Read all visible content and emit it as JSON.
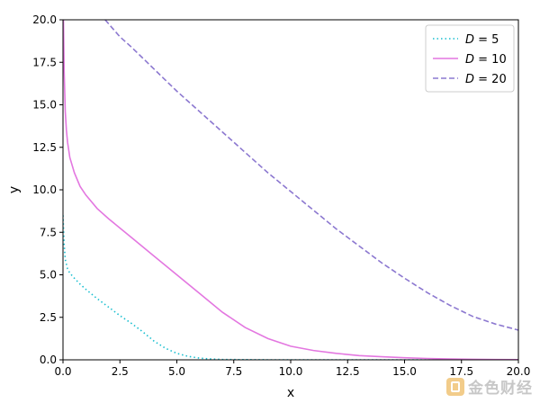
{
  "chart_data": {
    "type": "line",
    "title": "",
    "xlabel": "x",
    "ylabel": "y",
    "xlim": [
      0,
      20
    ],
    "ylim": [
      0,
      20
    ],
    "xticks": [
      "0.0",
      "2.5",
      "5.0",
      "7.5",
      "10.0",
      "12.5",
      "15.0",
      "17.5",
      "20.0"
    ],
    "yticks": [
      "0.0",
      "2.5",
      "5.0",
      "7.5",
      "10.0",
      "12.5",
      "15.0",
      "17.5",
      "20.0"
    ],
    "grid": false,
    "legend_position": "top-right",
    "series": [
      {
        "name": "D = 5",
        "legend_var": "D",
        "legend_value": "5",
        "color": "#17becf",
        "style": "dotted",
        "x": [
          0.0,
          0.05,
          0.1,
          0.2,
          0.3,
          0.5,
          0.75,
          1.0,
          1.5,
          2.0,
          2.5,
          3.0,
          3.5,
          4.0,
          4.5,
          5.0,
          5.5,
          6.0,
          6.5,
          7.0,
          8.0,
          9.0,
          10.0,
          12.0,
          15.0,
          20.0
        ],
        "y": [
          8.5,
          6.8,
          5.9,
          5.35,
          5.1,
          4.8,
          4.45,
          4.15,
          3.6,
          3.1,
          2.6,
          2.15,
          1.65,
          1.1,
          0.68,
          0.38,
          0.2,
          0.1,
          0.05,
          0.02,
          0.01,
          0.0,
          0.0,
          0.0,
          0.0,
          0.0
        ]
      },
      {
        "name": "D = 10",
        "legend_var": "D",
        "legend_value": "10",
        "color": "#e377e0",
        "style": "solid",
        "x": [
          0.02,
          0.05,
          0.1,
          0.15,
          0.2,
          0.3,
          0.5,
          0.75,
          1.0,
          1.5,
          2.0,
          3.0,
          4.0,
          5.0,
          6.0,
          7.0,
          8.0,
          9.0,
          10.0,
          11.0,
          12.0,
          13.0,
          14.0,
          15.0,
          16.0,
          17.0,
          18.0,
          19.0,
          20.0
        ],
        "y": [
          20.0,
          17.0,
          14.6,
          13.5,
          12.8,
          11.9,
          11.0,
          10.2,
          9.7,
          8.9,
          8.3,
          7.2,
          6.1,
          5.0,
          3.9,
          2.8,
          1.9,
          1.25,
          0.8,
          0.55,
          0.38,
          0.25,
          0.18,
          0.12,
          0.08,
          0.05,
          0.03,
          0.02,
          0.01
        ]
      },
      {
        "name": "D = 20",
        "legend_var": "D",
        "legend_value": "20",
        "color": "#8c78d0",
        "style": "dashed",
        "x": [
          1.85,
          2.5,
          3.0,
          4.0,
          5.0,
          6.0,
          7.0,
          8.0,
          9.0,
          10.0,
          11.0,
          12.0,
          13.0,
          14.0,
          15.0,
          16.0,
          17.0,
          18.0,
          19.0,
          20.0
        ],
        "y": [
          20.0,
          19.0,
          18.4,
          17.1,
          15.8,
          14.6,
          13.4,
          12.2,
          11.0,
          9.9,
          8.8,
          7.7,
          6.7,
          5.7,
          4.8,
          3.95,
          3.2,
          2.55,
          2.1,
          1.75
        ]
      }
    ]
  }
}
